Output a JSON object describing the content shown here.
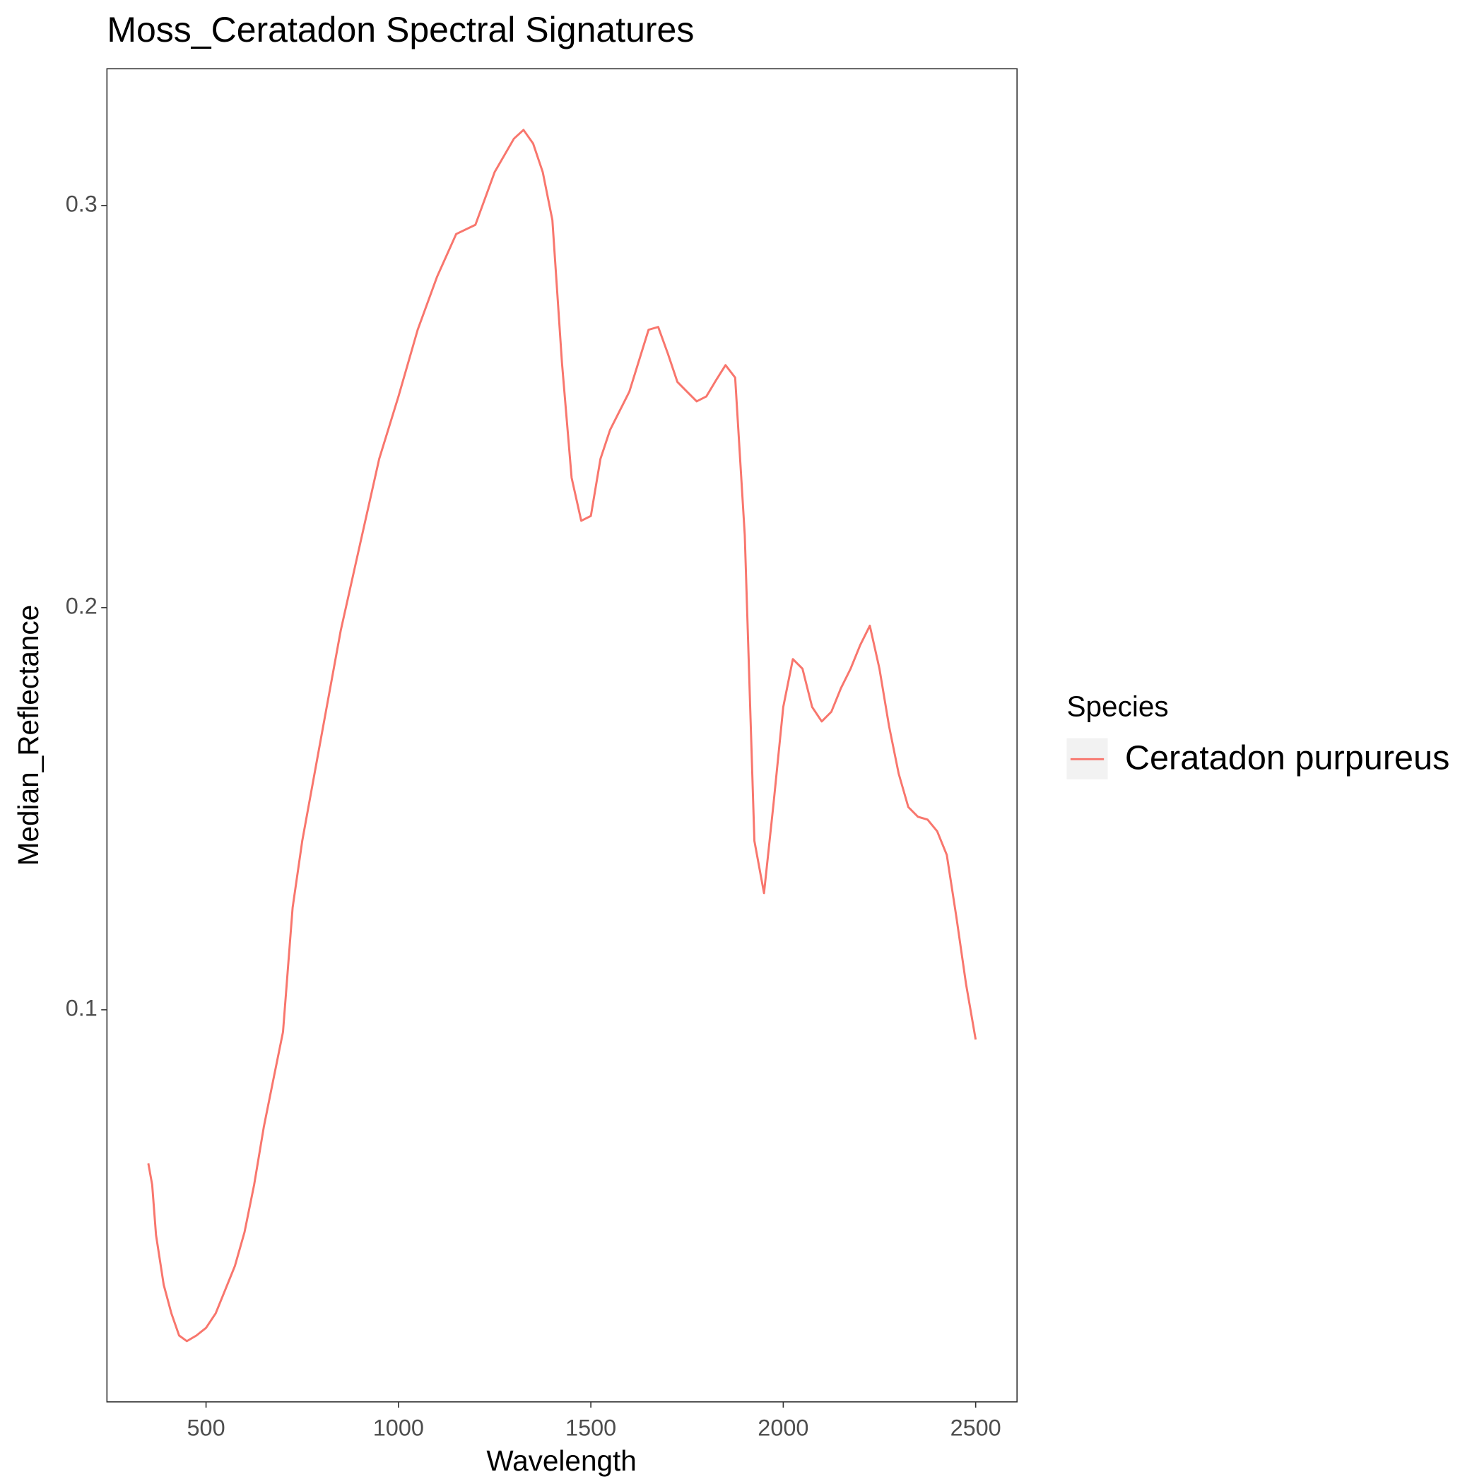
{
  "chart_data": {
    "type": "line",
    "title": "Moss_Ceratadon Spectral Signatures",
    "x_label": "Wavelength",
    "y_label": "Median_Reflectance",
    "legend_title": "Species",
    "legend_position": "right",
    "grid": false,
    "x": [
      350,
      360,
      370,
      390,
      410,
      430,
      450,
      475,
      500,
      525,
      550,
      575,
      600,
      625,
      650,
      675,
      700,
      725,
      750,
      800,
      850,
      900,
      950,
      1000,
      1050,
      1100,
      1150,
      1200,
      1250,
      1300,
      1325,
      1350,
      1375,
      1400,
      1425,
      1450,
      1475,
      1500,
      1525,
      1550,
      1600,
      1650,
      1675,
      1700,
      1725,
      1750,
      1775,
      1800,
      1825,
      1850,
      1875,
      1900,
      1925,
      1950,
      1975,
      2000,
      2025,
      2050,
      2075,
      2100,
      2125,
      2150,
      2175,
      2200,
      2225,
      2250,
      2275,
      2300,
      2325,
      2350,
      2375,
      2400,
      2425,
      2450,
      2475,
      2500
    ],
    "series": [
      {
        "name": "Ceratadon purpureus",
        "color": "#F8766D",
        "values": [
          0.0618,
          0.0565,
          0.044,
          0.0316,
          0.0245,
          0.019,
          0.0176,
          0.019,
          0.0209,
          0.0245,
          0.0304,
          0.0363,
          0.0447,
          0.0565,
          0.0708,
          0.0827,
          0.0945,
          0.1254,
          0.142,
          0.1682,
          0.1943,
          0.2157,
          0.237,
          0.2525,
          0.2691,
          0.2822,
          0.2929,
          0.2952,
          0.3083,
          0.3166,
          0.3188,
          0.3154,
          0.3083,
          0.2964,
          0.2608,
          0.2323,
          0.2216,
          0.2228,
          0.237,
          0.2442,
          0.2537,
          0.2691,
          0.2698,
          0.2632,
          0.2561,
          0.2537,
          0.2513,
          0.2525,
          0.2565,
          0.2603,
          0.2572,
          0.218,
          0.142,
          0.129,
          0.1515,
          0.1753,
          0.1872,
          0.1848,
          0.1753,
          0.1717,
          0.1741,
          0.18,
          0.1848,
          0.1907,
          0.1955,
          0.1848,
          0.1705,
          0.1587,
          0.1504,
          0.148,
          0.1473,
          0.1444,
          0.1385,
          0.123,
          0.1064,
          0.0926
        ]
      }
    ],
    "xlim": [
      242.5,
      2607.5
    ],
    "xticks": [
      500,
      1000,
      1500,
      2000,
      2500
    ],
    "ylim": [
      0.0025,
      0.334
    ],
    "yticks": [
      0.1,
      0.2,
      0.3
    ]
  }
}
